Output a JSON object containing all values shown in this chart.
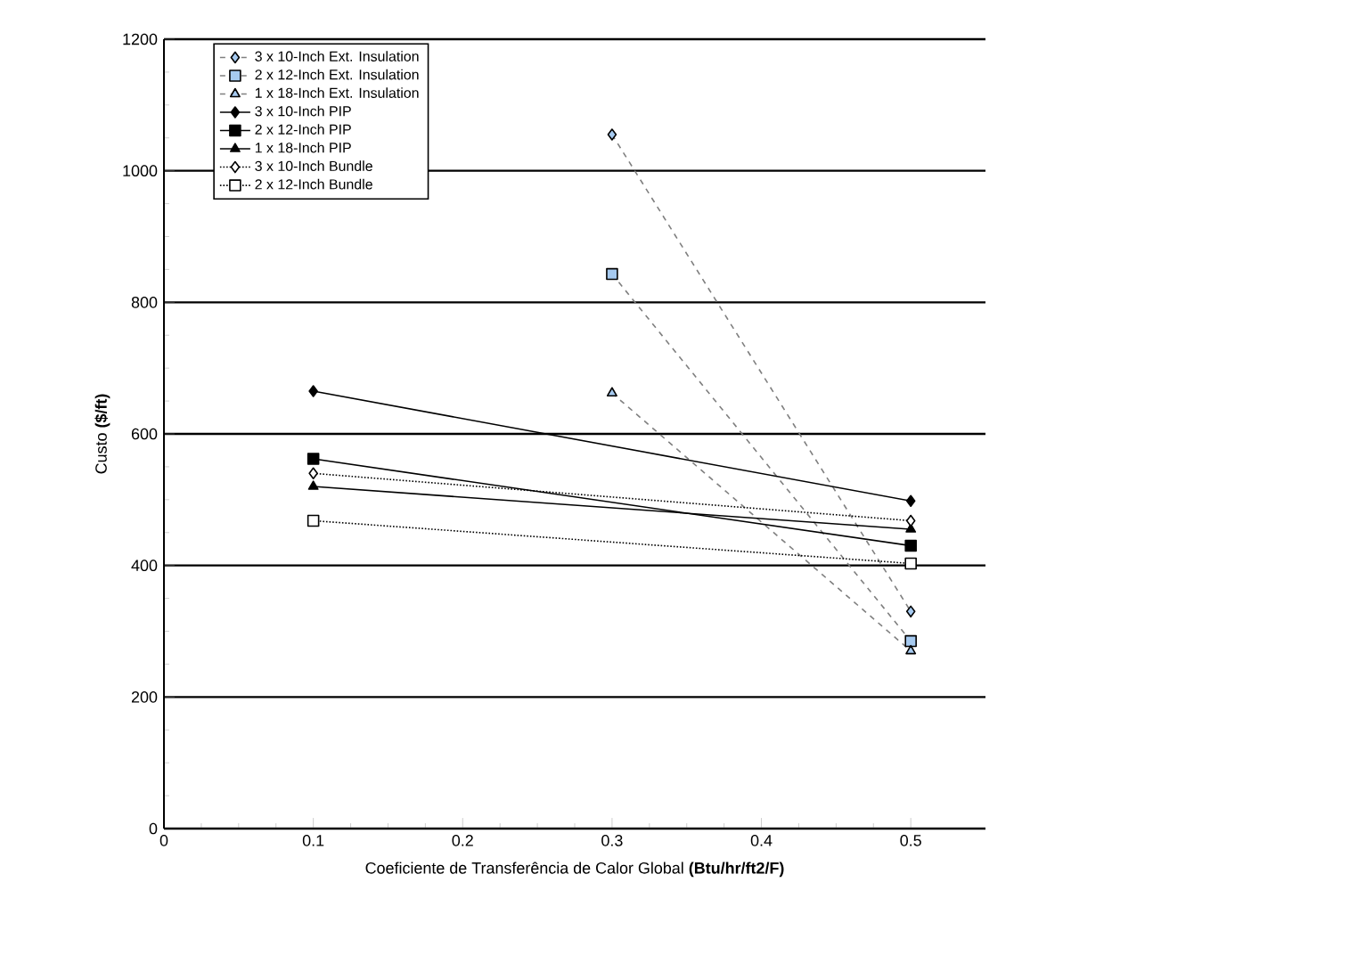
{
  "chart_data": {
    "type": "line",
    "xlabel": "Coeficiente de Transferência de Calor Global **(Btu/hr/ft2/F)**",
    "ylabel": "Custo **($/ft)**",
    "xlim": [
      0,
      0.55
    ],
    "ylim": [
      0,
      1200
    ],
    "xticks": [
      0,
      0.1,
      0.2,
      0.3,
      0.4,
      0.5
    ],
    "yticks": [
      0,
      200,
      400,
      600,
      800,
      1000,
      1200
    ],
    "grid": "y",
    "legend": "top left",
    "series": [
      {
        "name": "3 x 10-Inch Ext. Insulation",
        "color": "#7f7f7f",
        "line_style": "dashed",
        "marker": "diamond",
        "x": [
          0.3,
          0.5
        ],
        "values": [
          1055,
          330
        ]
      },
      {
        "name": "2 x 12-Inch Ext. Insulation",
        "color": "#7f7f7f",
        "line_style": "dashed",
        "marker": "square",
        "x": [
          0.3,
          0.5
        ],
        "values": [
          843,
          285
        ]
      },
      {
        "name": "1 x 18-Inch Ext. Insulation",
        "color": "#7f7f7f",
        "line_style": "dashed",
        "marker": "triangle",
        "x": [
          0.3,
          0.5
        ],
        "values": [
          662,
          270
        ]
      },
      {
        "name": "3 x 10-Inch PIP",
        "color": "#000000",
        "line_style": "solid",
        "marker": "diamond",
        "x": [
          0.1,
          0.5
        ],
        "values": [
          665,
          498
        ]
      },
      {
        "name": "2 x 12-Inch PIP",
        "color": "#000000",
        "line_style": "solid",
        "marker": "square",
        "x": [
          0.1,
          0.5
        ],
        "values": [
          562,
          430
        ]
      },
      {
        "name": "1 x 18-Inch PIP",
        "color": "#000000",
        "line_style": "solid",
        "marker": "triangle",
        "x": [
          0.1,
          0.5
        ],
        "values": [
          520,
          455
        ]
      },
      {
        "name": "3 x 10-Inch Bundle",
        "color": "#000000",
        "line_style": "dotted",
        "marker": "diamond",
        "x": [
          0.1,
          0.5
        ],
        "values": [
          540,
          468
        ]
      },
      {
        "name": "2 x 12-Inch Bundle",
        "color": "#000000",
        "line_style": "dotted",
        "marker": "square",
        "x": [
          0.1,
          0.5
        ],
        "values": [
          468,
          403
        ]
      }
    ]
  }
}
